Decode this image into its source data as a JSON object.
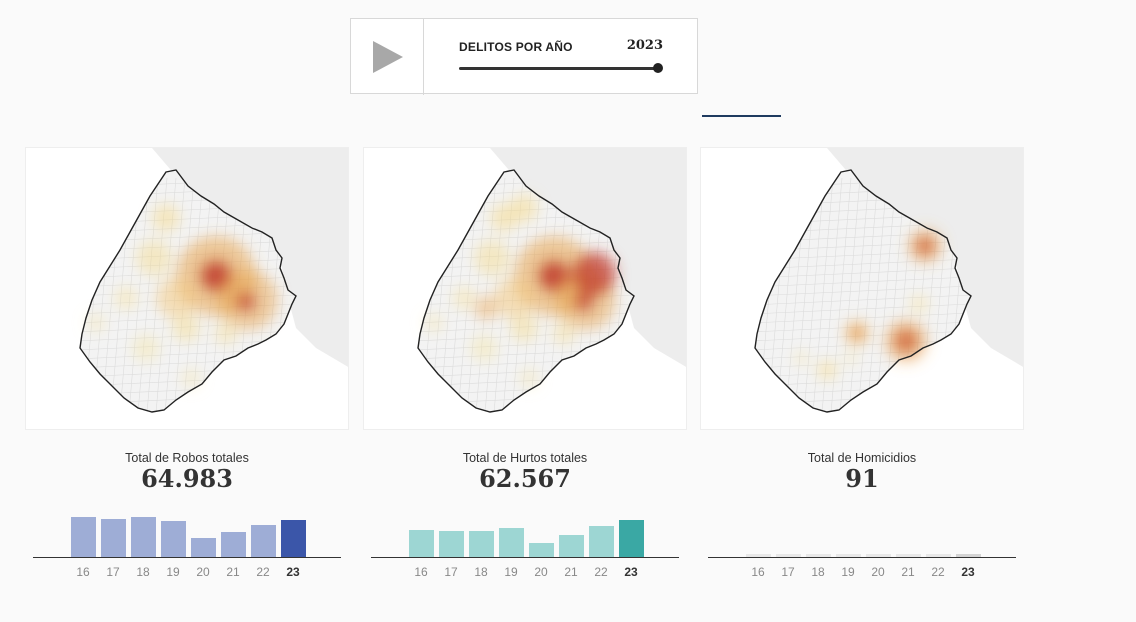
{
  "player": {
    "title": "DELITOS POR AÑO",
    "year": "2023",
    "play_icon": "play-icon",
    "progress": 1.0
  },
  "panels": [
    {
      "label": "Total de Robos totales",
      "total": "64.983",
      "bar_color": "#9eadd6",
      "bar_active_color": "#3b56a9",
      "hotspots": "high-center"
    },
    {
      "label": "Total de Hurtos totales",
      "total": "62.567",
      "bar_color": "#9dd6d3",
      "bar_active_color": "#3aa8a4",
      "hotspots": "high-center"
    },
    {
      "label": "Total de Homicidios",
      "total": "91",
      "bar_color": "#e8e8e8",
      "bar_active_color": "#d4d4d4",
      "hotspots": "sparse"
    }
  ],
  "chart_data": [
    {
      "type": "bar",
      "categories": [
        "16",
        "17",
        "18",
        "19",
        "20",
        "21",
        "22",
        "23"
      ],
      "values": [
        100,
        96,
        100,
        89,
        48,
        62,
        80,
        92
      ],
      "highlight": "23"
    },
    {
      "type": "bar",
      "categories": [
        "16",
        "17",
        "18",
        "19",
        "20",
        "21",
        "22",
        "23"
      ],
      "values": [
        68,
        64,
        64,
        72,
        35,
        55,
        78,
        92
      ],
      "highlight": "23"
    },
    {
      "type": "bar",
      "categories": [
        "16",
        "17",
        "18",
        "19",
        "20",
        "21",
        "22",
        "23"
      ],
      "values": [
        7,
        7,
        7,
        7,
        7,
        7,
        7,
        8
      ],
      "highlight": "23"
    }
  ]
}
